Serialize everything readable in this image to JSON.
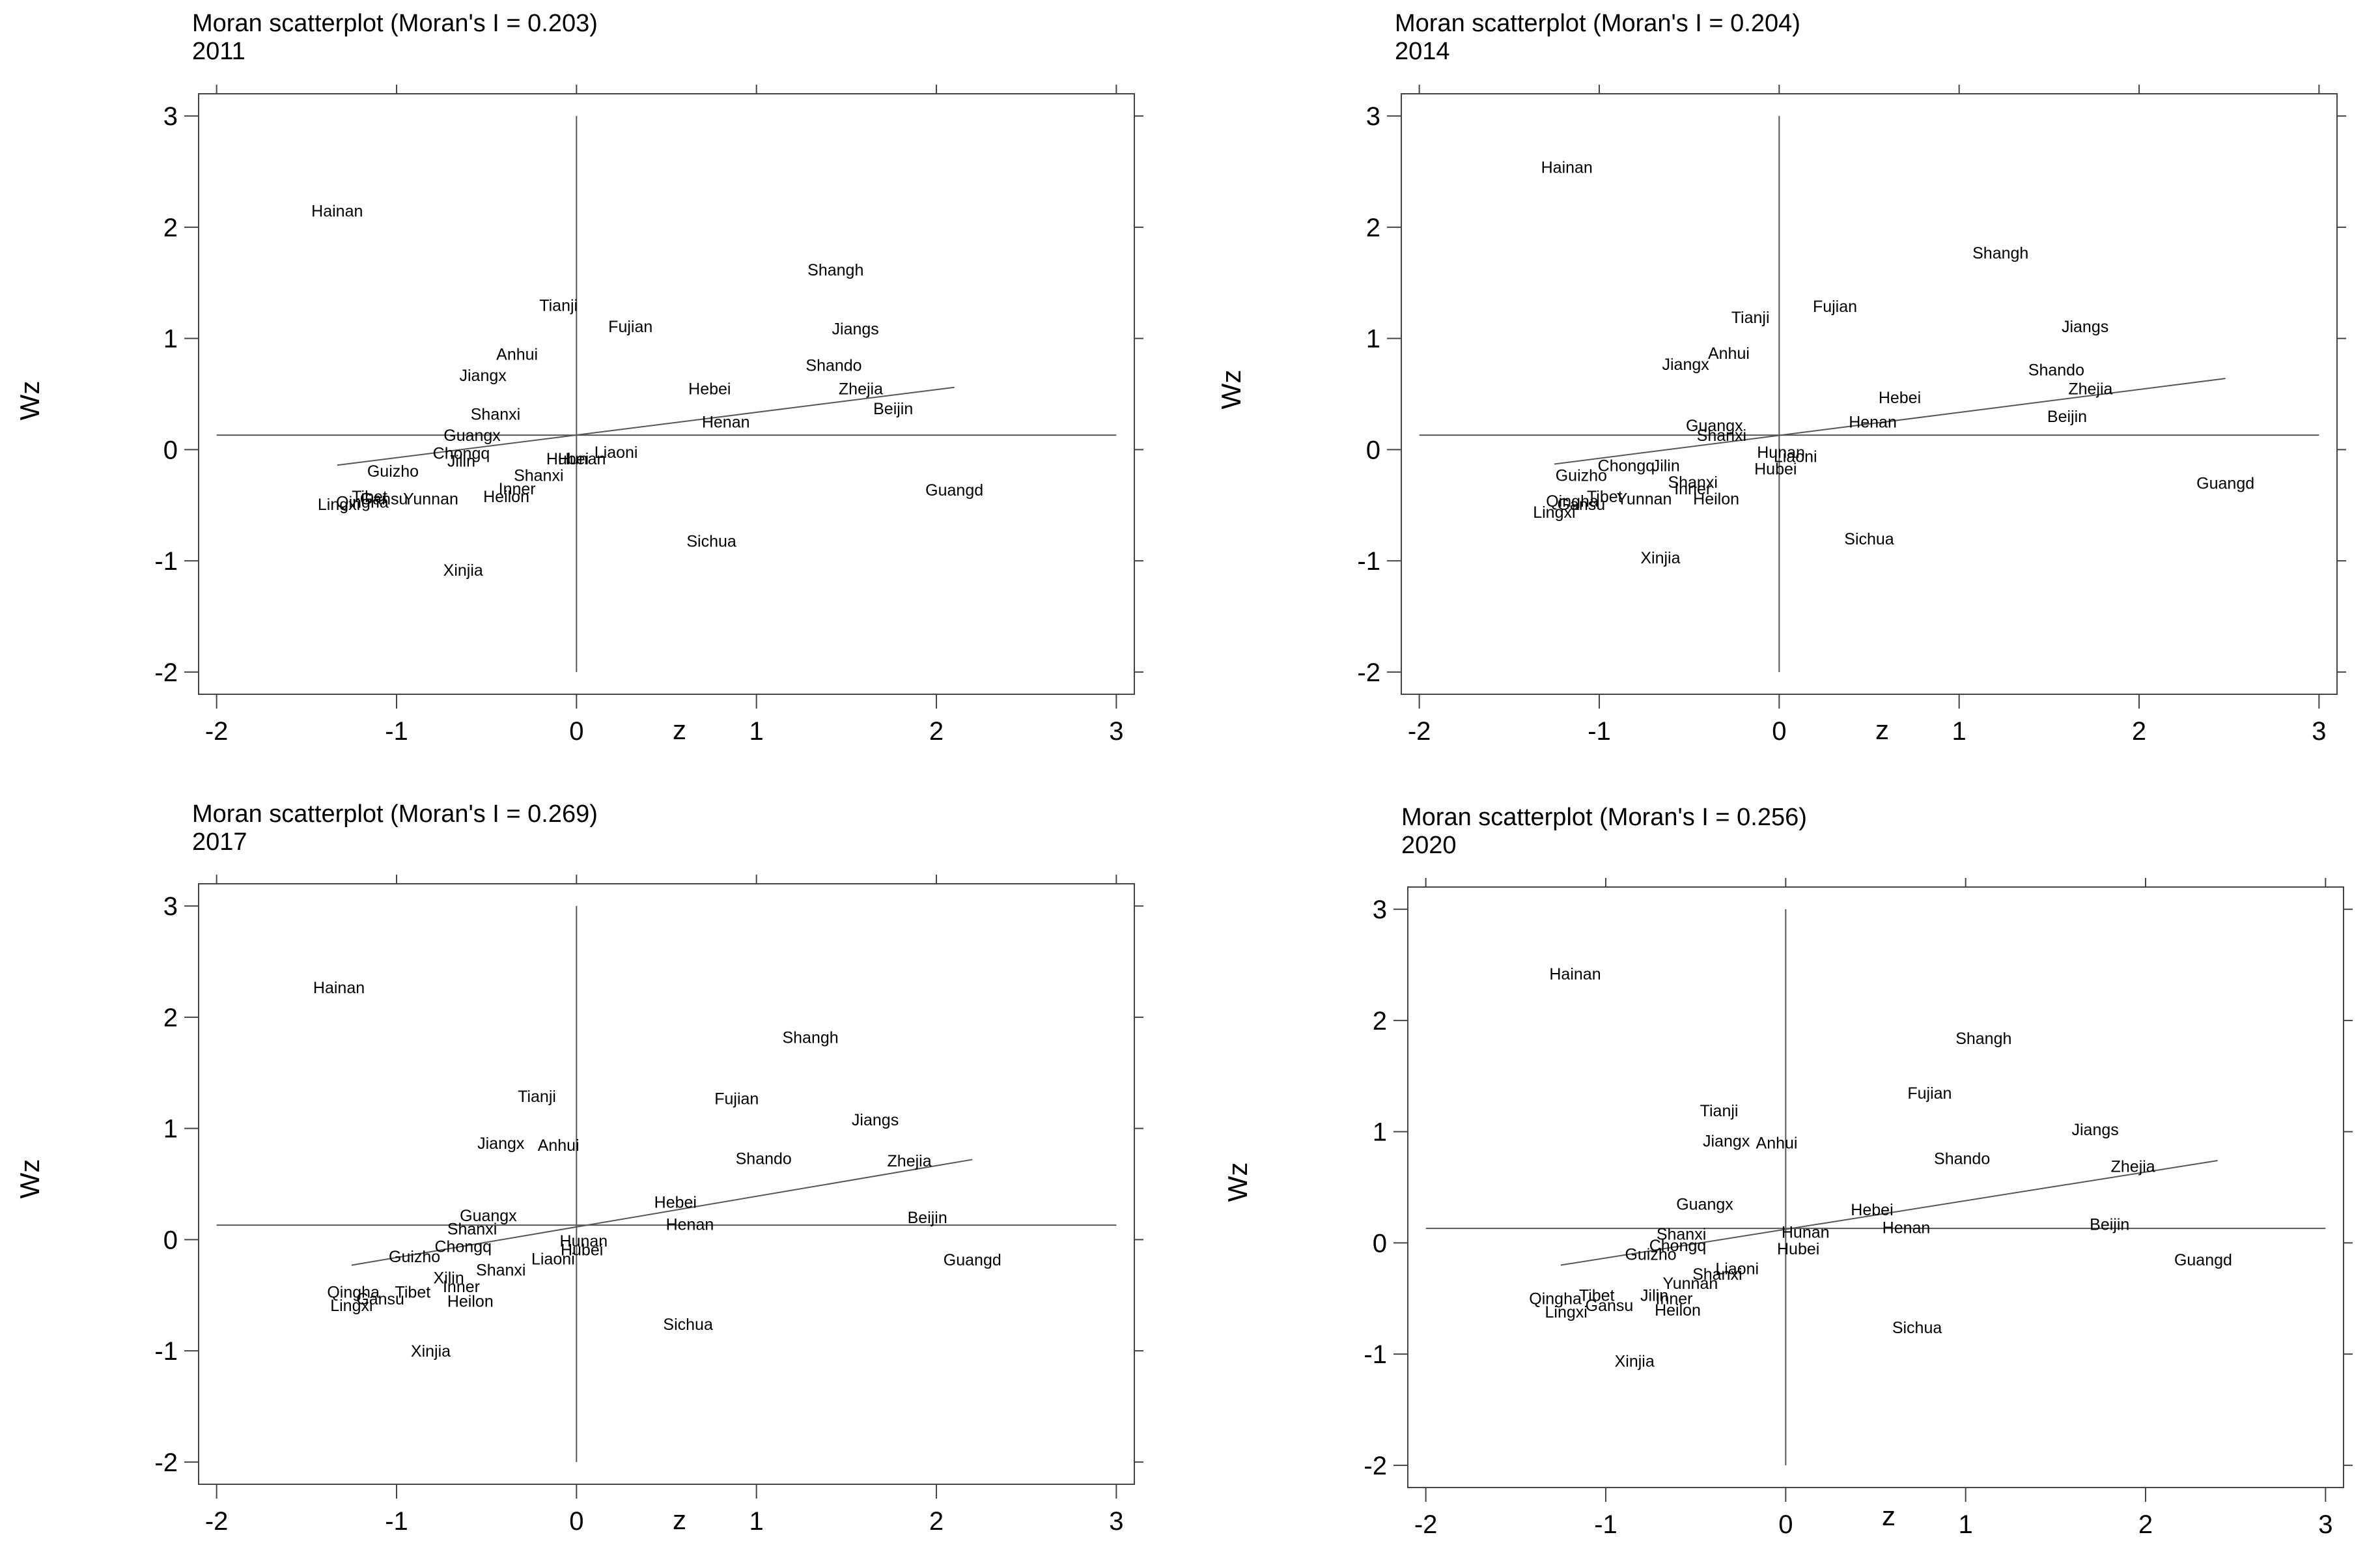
{
  "chart_data": [
    {
      "type": "scatter",
      "title": "Moran scatterplot (Moran's I = 0.203)",
      "subtitle": "2011",
      "xlabel": "z",
      "ylabel": "Wz",
      "xlim": [
        -2.1,
        3.1
      ],
      "ylim": [
        -2.2,
        3.2
      ],
      "xticks": [
        -2,
        -1,
        0,
        1,
        2,
        3
      ],
      "yticks": [
        -2,
        -1,
        0,
        1,
        2,
        3
      ],
      "reference_lines": {
        "x": 0,
        "y": 0.13
      },
      "fit_line": {
        "x": [
          -1.33,
          2.1
        ],
        "y": [
          -0.14,
          0.56
        ]
      },
      "points": [
        {
          "label": "Hainan",
          "x": -1.33,
          "y": 2.15
        },
        {
          "label": "Tianji",
          "x": -0.1,
          "y": 1.3
        },
        {
          "label": "Fujian",
          "x": 0.3,
          "y": 1.11
        },
        {
          "label": "Anhui",
          "x": -0.33,
          "y": 0.86
        },
        {
          "label": "Jiangx",
          "x": -0.52,
          "y": 0.67
        },
        {
          "label": "Shanxi",
          "x": -0.45,
          "y": 0.32
        },
        {
          "label": "Guangx",
          "x": -0.58,
          "y": 0.13
        },
        {
          "label": "Chongq",
          "x": -0.64,
          "y": -0.03
        },
        {
          "label": "Jilin",
          "x": -0.64,
          "y": -0.1
        },
        {
          "label": "Guizho",
          "x": -1.02,
          "y": -0.19
        },
        {
          "label": "Shanxi",
          "x": -0.21,
          "y": -0.23
        },
        {
          "label": "Hubei",
          "x": -0.05,
          "y": -0.08
        },
        {
          "label": "Hunan",
          "x": 0.03,
          "y": -0.08
        },
        {
          "label": "Liaoni",
          "x": 0.22,
          "y": -0.02
        },
        {
          "label": "Inner",
          "x": -0.33,
          "y": -0.35
        },
        {
          "label": "Heilon",
          "x": -0.39,
          "y": -0.42
        },
        {
          "label": "Yunnan",
          "x": -0.81,
          "y": -0.44
        },
        {
          "label": "Tibet",
          "x": -1.15,
          "y": -0.42
        },
        {
          "label": "Gansu",
          "x": -1.07,
          "y": -0.44
        },
        {
          "label": "Qingha",
          "x": -1.19,
          "y": -0.47
        },
        {
          "label": "Lingxi",
          "x": -1.32,
          "y": -0.49
        },
        {
          "label": "Xinjia",
          "x": -0.63,
          "y": -1.08
        },
        {
          "label": "Sichua",
          "x": 0.75,
          "y": -0.82
        },
        {
          "label": "Hebei",
          "x": 0.74,
          "y": 0.55
        },
        {
          "label": "Henan",
          "x": 0.83,
          "y": 0.25
        },
        {
          "label": "Shando",
          "x": 1.43,
          "y": 0.76
        },
        {
          "label": "Zhejia",
          "x": 1.58,
          "y": 0.55
        },
        {
          "label": "Jiangs",
          "x": 1.55,
          "y": 1.09
        },
        {
          "label": "Shangh",
          "x": 1.44,
          "y": 1.62
        },
        {
          "label": "Beijin",
          "x": 1.76,
          "y": 0.37
        },
        {
          "label": "Guangd",
          "x": 2.1,
          "y": -0.36
        }
      ]
    },
    {
      "type": "scatter",
      "title": "Moran scatterplot (Moran's I = 0.204)",
      "subtitle": "2014",
      "xlabel": "z",
      "ylabel": "Wz",
      "xlim": [
        -2.1,
        3.1
      ],
      "ylim": [
        -2.2,
        3.2
      ],
      "xticks": [
        -2,
        -1,
        0,
        1,
        2,
        3
      ],
      "yticks": [
        -2,
        -1,
        0,
        1,
        2,
        3
      ],
      "reference_lines": {
        "x": 0,
        "y": 0.13
      },
      "fit_line": {
        "x": [
          -1.25,
          2.48
        ],
        "y": [
          -0.13,
          0.64
        ]
      },
      "points": [
        {
          "label": "Hainan",
          "x": -1.18,
          "y": 2.54
        },
        {
          "label": "Shangh",
          "x": 1.23,
          "y": 1.77
        },
        {
          "label": "Fujian",
          "x": 0.31,
          "y": 1.29
        },
        {
          "label": "Tianji",
          "x": -0.16,
          "y": 1.19
        },
        {
          "label": "Jiangs",
          "x": 1.7,
          "y": 1.11
        },
        {
          "label": "Anhui",
          "x": -0.28,
          "y": 0.87
        },
        {
          "label": "Jiangx",
          "x": -0.52,
          "y": 0.77
        },
        {
          "label": "Shando",
          "x": 1.54,
          "y": 0.72
        },
        {
          "label": "Zhejia",
          "x": 1.73,
          "y": 0.55
        },
        {
          "label": "Hebei",
          "x": 0.67,
          "y": 0.47
        },
        {
          "label": "Beijin",
          "x": 1.6,
          "y": 0.3
        },
        {
          "label": "Henan",
          "x": 0.52,
          "y": 0.25
        },
        {
          "label": "Guangx",
          "x": -0.36,
          "y": 0.22
        },
        {
          "label": "Shanxi",
          "x": -0.32,
          "y": 0.13
        },
        {
          "label": "Hunan",
          "x": 0.01,
          "y": -0.02
        },
        {
          "label": "Liaoni",
          "x": 0.09,
          "y": -0.06
        },
        {
          "label": "Hubei",
          "x": -0.02,
          "y": -0.17
        },
        {
          "label": "Chongq",
          "x": -0.85,
          "y": -0.14
        },
        {
          "label": "Jilin",
          "x": -0.63,
          "y": -0.14
        },
        {
          "label": "Guizho",
          "x": -1.1,
          "y": -0.23
        },
        {
          "label": "Shanxi",
          "x": -0.48,
          "y": -0.29
        },
        {
          "label": "Inner",
          "x": -0.48,
          "y": -0.35
        },
        {
          "label": "Heilon",
          "x": -0.35,
          "y": -0.44
        },
        {
          "label": "Yunnan",
          "x": -0.75,
          "y": -0.44
        },
        {
          "label": "Tibet",
          "x": -0.97,
          "y": -0.42
        },
        {
          "label": "Qingha",
          "x": -1.15,
          "y": -0.46
        },
        {
          "label": "Gansu",
          "x": -1.1,
          "y": -0.49
        },
        {
          "label": "Lingxi",
          "x": -1.25,
          "y": -0.56
        },
        {
          "label": "Xinjia",
          "x": -0.66,
          "y": -0.97
        },
        {
          "label": "Sichua",
          "x": 0.5,
          "y": -0.8
        },
        {
          "label": "Guangd",
          "x": 2.48,
          "y": -0.3
        }
      ]
    },
    {
      "type": "scatter",
      "title": "Moran scatterplot (Moran's I = 0.269)",
      "subtitle": "2017",
      "xlabel": "z",
      "ylabel": "Wz",
      "xlim": [
        -2.1,
        3.1
      ],
      "ylim": [
        -2.2,
        3.2
      ],
      "xticks": [
        -2,
        -1,
        0,
        1,
        2,
        3
      ],
      "yticks": [
        -2,
        -1,
        0,
        1,
        2,
        3
      ],
      "reference_lines": {
        "x": 0,
        "y": 0.13
      },
      "fit_line": {
        "x": [
          -1.25,
          2.2
        ],
        "y": [
          -0.23,
          0.72
        ]
      },
      "points": [
        {
          "label": "Hainan",
          "x": -1.32,
          "y": 2.27
        },
        {
          "label": "Shangh",
          "x": 1.3,
          "y": 1.82
        },
        {
          "label": "Tianji",
          "x": -0.22,
          "y": 1.29
        },
        {
          "label": "Fujian",
          "x": 0.89,
          "y": 1.27
        },
        {
          "label": "Jiangs",
          "x": 1.66,
          "y": 1.08
        },
        {
          "label": "Jiangx",
          "x": -0.42,
          "y": 0.87
        },
        {
          "label": "Anhui",
          "x": -0.1,
          "y": 0.85
        },
        {
          "label": "Shando",
          "x": 1.04,
          "y": 0.73
        },
        {
          "label": "Zhejia",
          "x": 1.85,
          "y": 0.71
        },
        {
          "label": "Hebei",
          "x": 0.55,
          "y": 0.34
        },
        {
          "label": "Guangx",
          "x": -0.49,
          "y": 0.22
        },
        {
          "label": "Beijin",
          "x": 1.95,
          "y": 0.2
        },
        {
          "label": "Henan",
          "x": 0.63,
          "y": 0.14
        },
        {
          "label": "Shanxi",
          "x": -0.58,
          "y": 0.1
        },
        {
          "label": "Hunan",
          "x": 0.04,
          "y": -0.01
        },
        {
          "label": "Chongq",
          "x": -0.63,
          "y": -0.06
        },
        {
          "label": "Hubei",
          "x": 0.03,
          "y": -0.09
        },
        {
          "label": "Liaoni",
          "x": -0.13,
          "y": -0.17
        },
        {
          "label": "Guizho",
          "x": -0.9,
          "y": -0.15
        },
        {
          "label": "Shanxi",
          "x": -0.42,
          "y": -0.27
        },
        {
          "label": "Xilin",
          "x": -0.71,
          "y": -0.34
        },
        {
          "label": "Inner",
          "x": -0.64,
          "y": -0.42
        },
        {
          "label": "Heilon",
          "x": -0.59,
          "y": -0.55
        },
        {
          "label": "Tibet",
          "x": -0.91,
          "y": -0.47
        },
        {
          "label": "Gansu",
          "x": -1.09,
          "y": -0.53
        },
        {
          "label": "Qingha",
          "x": -1.24,
          "y": -0.47
        },
        {
          "label": "Lingxi",
          "x": -1.25,
          "y": -0.59
        },
        {
          "label": "Xinjia",
          "x": -0.81,
          "y": -1.0
        },
        {
          "label": "Sichua",
          "x": 0.62,
          "y": -0.76
        },
        {
          "label": "Guangd",
          "x": 2.2,
          "y": -0.18
        }
      ]
    },
    {
      "type": "scatter",
      "title": "Moran scatterplot (Moran's I = 0.256)",
      "subtitle": "2020",
      "xlabel": "z",
      "ylabel": "Wz",
      "xlim": [
        -2.1,
        3.1
      ],
      "ylim": [
        -2.2,
        3.2
      ],
      "xticks": [
        -2,
        -1,
        0,
        1,
        2,
        3
      ],
      "yticks": [
        -2,
        -1,
        0,
        1,
        2,
        3
      ],
      "reference_lines": {
        "x": 0,
        "y": 0.13
      },
      "fit_line": {
        "x": [
          -1.25,
          2.4
        ],
        "y": [
          -0.2,
          0.74
        ]
      },
      "points": [
        {
          "label": "Hainan",
          "x": -1.17,
          "y": 2.42
        },
        {
          "label": "Shangh",
          "x": 1.1,
          "y": 1.84
        },
        {
          "label": "Fujian",
          "x": 0.8,
          "y": 1.35
        },
        {
          "label": "Tianji",
          "x": -0.37,
          "y": 1.19
        },
        {
          "label": "Jiangs",
          "x": 1.72,
          "y": 1.02
        },
        {
          "label": "Jiangx",
          "x": -0.33,
          "y": 0.92
        },
        {
          "label": "Anhui",
          "x": -0.05,
          "y": 0.9
        },
        {
          "label": "Shando",
          "x": 0.98,
          "y": 0.76
        },
        {
          "label": "Zhejia",
          "x": 1.93,
          "y": 0.69
        },
        {
          "label": "Guangx",
          "x": -0.45,
          "y": 0.35
        },
        {
          "label": "Hebei",
          "x": 0.48,
          "y": 0.3
        },
        {
          "label": "Beijin",
          "x": 1.8,
          "y": 0.17
        },
        {
          "label": "Henan",
          "x": 0.67,
          "y": 0.14
        },
        {
          "label": "Hunan",
          "x": 0.11,
          "y": 0.1
        },
        {
          "label": "Shanxi",
          "x": -0.58,
          "y": 0.08
        },
        {
          "label": "Chongq",
          "x": -0.6,
          "y": -0.02
        },
        {
          "label": "Hubei",
          "x": 0.07,
          "y": -0.05
        },
        {
          "label": "Guizho",
          "x": -0.75,
          "y": -0.1
        },
        {
          "label": "Shanxi",
          "x": -0.38,
          "y": -0.28
        },
        {
          "label": "Liaoni",
          "x": -0.27,
          "y": -0.23
        },
        {
          "label": "Yunnan",
          "x": -0.53,
          "y": -0.36
        },
        {
          "label": "Jilin",
          "x": -0.73,
          "y": -0.47
        },
        {
          "label": "Inner",
          "x": -0.62,
          "y": -0.5
        },
        {
          "label": "Heilon",
          "x": -0.6,
          "y": -0.6
        },
        {
          "label": "Tibet",
          "x": -1.05,
          "y": -0.47
        },
        {
          "label": "Gansu",
          "x": -0.98,
          "y": -0.56
        },
        {
          "label": "Qingha",
          "x": -1.28,
          "y": -0.5
        },
        {
          "label": "Lingxi",
          "x": -1.22,
          "y": -0.62
        },
        {
          "label": "Xinjia",
          "x": -0.84,
          "y": -1.06
        },
        {
          "label": "Sichua",
          "x": 0.73,
          "y": -0.76
        },
        {
          "label": "Guangd",
          "x": 2.32,
          "y": -0.15
        }
      ]
    }
  ]
}
